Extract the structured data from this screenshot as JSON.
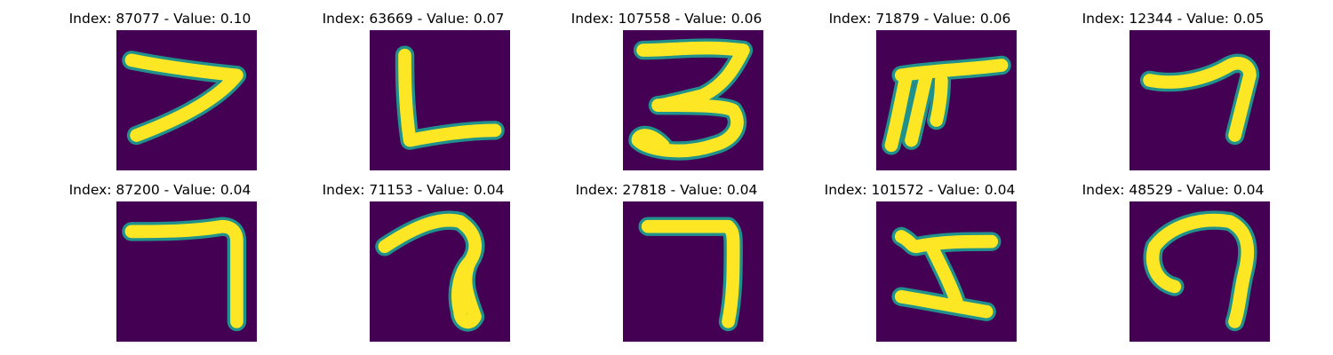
{
  "colors": {
    "background": "#440154",
    "foreground": "#fde725",
    "edge": "#21918c"
  },
  "panels": [
    {
      "title": "Index: 87077 - Value: 0.10",
      "glyph": "stroke shaped like 7"
    },
    {
      "title": "Index: 63669 - Value: 0.07",
      "glyph": "stroke shaped like L"
    },
    {
      "title": "Index: 107558 - Value: 0.06",
      "glyph": "stroke shaped like 3"
    },
    {
      "title": "Index: 71879 - Value: 0.06",
      "glyph": "stroke shaped like F"
    },
    {
      "title": "Index: 12344 - Value: 0.05",
      "glyph": "stroke shaped like 7"
    },
    {
      "title": "Index: 87200 - Value: 0.04",
      "glyph": "stroke shaped like 7"
    },
    {
      "title": "Index: 71153 - Value: 0.04",
      "glyph": "stroke shaped like 7"
    },
    {
      "title": "Index: 27818 - Value: 0.04",
      "glyph": "stroke shaped like 7"
    },
    {
      "title": "Index: 101572 - Value: 0.04",
      "glyph": "stroke shaped like Z"
    },
    {
      "title": "Index: 48529 - Value: 0.04",
      "glyph": "stroke shaped like n"
    }
  ]
}
